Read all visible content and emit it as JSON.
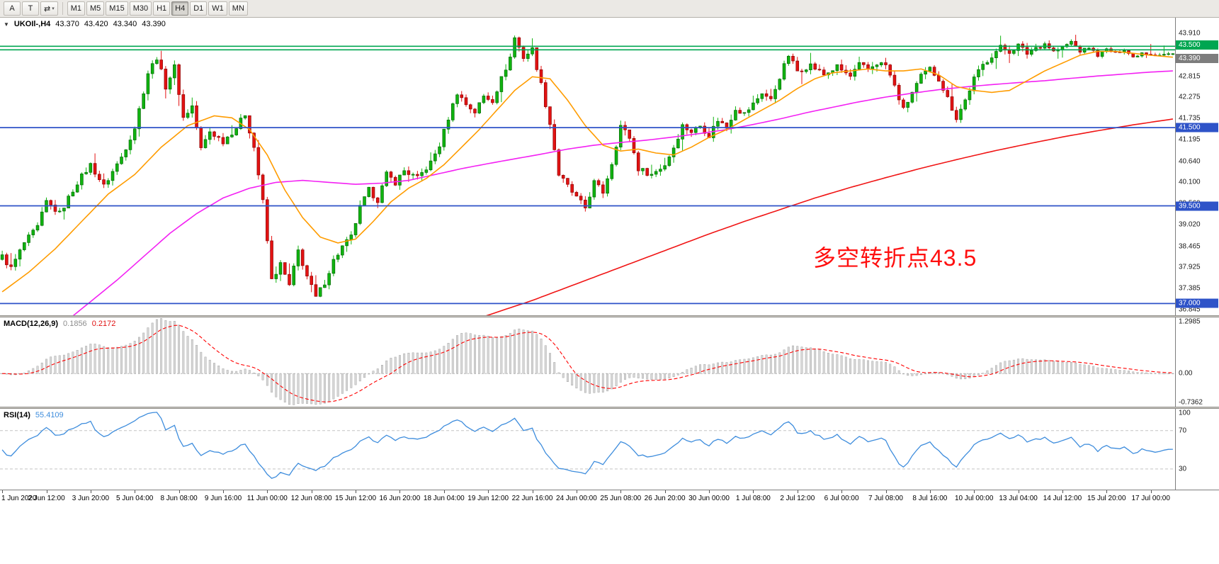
{
  "toolbar": {
    "tools": [
      {
        "name": "font-tool",
        "glyph": "A",
        "dropdown": false
      },
      {
        "name": "text-tool",
        "glyph": "T",
        "dropdown": false
      },
      {
        "name": "draw-tool",
        "glyph": "⇄",
        "dropdown": true
      }
    ],
    "timeframes": [
      {
        "label": "M1",
        "active": false
      },
      {
        "label": "M5",
        "active": false
      },
      {
        "label": "M15",
        "active": false
      },
      {
        "label": "M30",
        "active": false
      },
      {
        "label": "H1",
        "active": false
      },
      {
        "label": "H4",
        "active": true
      },
      {
        "label": "D1",
        "active": false
      },
      {
        "label": "W1",
        "active": false
      },
      {
        "label": "MN",
        "active": false
      }
    ]
  },
  "price_panel": {
    "collapse_icon": "▼",
    "title": {
      "symbol_period": "UKOIl-,H4",
      "open": "43.370",
      "high": "43.420",
      "low": "43.340",
      "close": "43.390"
    },
    "annotation": "多空转折点43.5",
    "axis_labels": [
      "43.910",
      "42.815",
      "42.275",
      "41.735",
      "41.195",
      "40.640",
      "40.100",
      "39.560",
      "39.020",
      "38.465",
      "37.925",
      "37.385",
      "36.845"
    ],
    "badges": [
      {
        "name": "resistance",
        "text": "43.500",
        "value": 43.5,
        "color": "#00a651"
      },
      {
        "name": "current-price",
        "text": "43.390",
        "value": 43.39,
        "color": "#7d7d7d"
      },
      {
        "name": "support-1",
        "text": "41.500",
        "value": 41.5,
        "color": "#2e53c8"
      },
      {
        "name": "support-2",
        "text": "39.500",
        "value": 39.5,
        "color": "#2e53c8"
      },
      {
        "name": "support-3",
        "text": "37.000",
        "value": 37.0,
        "color": "#2e53c8"
      }
    ],
    "scale": {
      "min": 36.7,
      "max": 44.31
    }
  },
  "macd_panel": {
    "label": "MACD(12,26,9)",
    "value_main": "0.1856",
    "value_signal": "0.2172",
    "axis_labels": {
      "top": "1.2985",
      "zero": "0.00",
      "bottom": "-0.7362"
    },
    "scale": {
      "min": -0.78,
      "max": 1.32
    }
  },
  "rsi_panel": {
    "label": "RSI(14)",
    "value": "55.4109",
    "axis_labels": {
      "top": "100",
      "upper": "70",
      "lower": "30"
    },
    "levels": [
      70,
      30
    ],
    "scale": {
      "min": 8.5,
      "max": 92.7
    }
  },
  "time_axis": {
    "step_candles": 10,
    "labels": [
      "1 Jun 2020",
      "2 Jun 12:00",
      "3 Jun 20:00",
      "5 Jun 04:00",
      "8 Jun 08:00",
      "9 Jun 16:00",
      "11 Jun 00:00",
      "12 Jun 08:00",
      "15 Jun 12:00",
      "16 Jun 20:00",
      "18 Jun 04:00",
      "19 Jun 12:00",
      "22 Jun 16:00",
      "24 Jun 00:00",
      "25 Jun 08:00",
      "26 Jun 20:00",
      "30 Jun 00:00",
      "1 Jul 08:00",
      "2 Jul 12:00",
      "6 Jul 00:00",
      "7 Jul 08:00",
      "8 Jul 16:00",
      "10 Jul 00:00",
      "13 Jul 04:00",
      "14 Jul 12:00",
      "15 Jul 20:00",
      "17 Jul 00:00"
    ]
  },
  "chart_data": {
    "type": "candlestick",
    "symbol": "UKOIl-",
    "period": "H4",
    "candle_count": 266,
    "ohlc_current": {
      "open": 43.37,
      "high": 43.42,
      "low": 43.34,
      "close": 43.39
    },
    "horizontal_lines": {
      "green": [
        43.58,
        43.49
      ],
      "blue": [
        41.5,
        39.5,
        37.0
      ]
    },
    "price_path_anchors": [
      [
        0,
        38.2
      ],
      [
        2,
        37.9
      ],
      [
        5,
        38.55
      ],
      [
        8,
        38.95
      ],
      [
        10,
        39.6
      ],
      [
        13,
        39.3
      ],
      [
        17,
        40.1
      ],
      [
        20,
        40.55
      ],
      [
        23,
        40.0
      ],
      [
        27,
        40.75
      ],
      [
        30,
        41.5
      ],
      [
        33,
        42.9
      ],
      [
        35,
        43.3
      ],
      [
        37,
        42.55
      ],
      [
        39,
        43.05
      ],
      [
        41,
        41.75
      ],
      [
        43,
        42.05
      ],
      [
        45,
        40.95
      ],
      [
        47,
        41.4
      ],
      [
        50,
        41.15
      ],
      [
        53,
        41.5
      ],
      [
        55,
        41.85
      ],
      [
        57,
        41.0
      ],
      [
        59,
        39.6
      ],
      [
        61,
        37.6
      ],
      [
        63,
        38.0
      ],
      [
        65,
        37.45
      ],
      [
        67,
        38.35
      ],
      [
        69,
        37.7
      ],
      [
        71,
        37.15
      ],
      [
        73,
        37.55
      ],
      [
        75,
        38.1
      ],
      [
        77,
        38.45
      ],
      [
        79,
        38.7
      ],
      [
        81,
        39.45
      ],
      [
        83,
        39.9
      ],
      [
        85,
        39.65
      ],
      [
        87,
        40.3
      ],
      [
        89,
        40.1
      ],
      [
        91,
        40.4
      ],
      [
        94,
        40.2
      ],
      [
        97,
        40.6
      ],
      [
        99,
        41.05
      ],
      [
        101,
        41.75
      ],
      [
        103,
        42.4
      ],
      [
        105,
        42.1
      ],
      [
        107,
        41.9
      ],
      [
        109,
        42.3
      ],
      [
        111,
        42.2
      ],
      [
        113,
        42.75
      ],
      [
        115,
        43.3
      ],
      [
        116,
        43.8
      ],
      [
        118,
        43.3
      ],
      [
        120,
        43.5
      ],
      [
        122,
        42.6
      ],
      [
        124,
        41.6
      ],
      [
        126,
        40.3
      ],
      [
        128,
        40.0
      ],
      [
        130,
        39.7
      ],
      [
        132,
        39.45
      ],
      [
        134,
        40.1
      ],
      [
        136,
        39.85
      ],
      [
        138,
        40.6
      ],
      [
        140,
        41.55
      ],
      [
        142,
        41.25
      ],
      [
        144,
        40.45
      ],
      [
        147,
        40.3
      ],
      [
        150,
        40.55
      ],
      [
        152,
        41.0
      ],
      [
        154,
        41.55
      ],
      [
        156,
        41.4
      ],
      [
        158,
        41.55
      ],
      [
        160,
        41.3
      ],
      [
        162,
        41.7
      ],
      [
        164,
        41.5
      ],
      [
        166,
        42.0
      ],
      [
        168,
        41.85
      ],
      [
        170,
        42.1
      ],
      [
        172,
        42.4
      ],
      [
        174,
        42.2
      ],
      [
        176,
        42.8
      ],
      [
        178,
        43.35
      ],
      [
        180,
        42.95
      ],
      [
        183,
        43.1
      ],
      [
        186,
        42.85
      ],
      [
        189,
        43.05
      ],
      [
        192,
        42.8
      ],
      [
        194,
        43.1
      ],
      [
        196,
        43.0
      ],
      [
        198,
        43.15
      ],
      [
        200,
        43.1
      ],
      [
        202,
        42.55
      ],
      [
        204,
        41.95
      ],
      [
        206,
        42.4
      ],
      [
        208,
        42.8
      ],
      [
        210,
        43.0
      ],
      [
        212,
        42.75
      ],
      [
        214,
        42.25
      ],
      [
        216,
        41.75
      ],
      [
        218,
        42.2
      ],
      [
        220,
        42.75
      ],
      [
        222,
        43.1
      ],
      [
        224,
        43.35
      ],
      [
        226,
        43.55
      ],
      [
        228,
        43.45
      ],
      [
        230,
        43.6
      ],
      [
        232,
        43.4
      ],
      [
        234,
        43.55
      ],
      [
        236,
        43.65
      ],
      [
        238,
        43.45
      ],
      [
        240,
        43.55
      ],
      [
        242,
        43.7
      ],
      [
        244,
        43.45
      ],
      [
        246,
        43.55
      ],
      [
        248,
        43.35
      ],
      [
        250,
        43.5
      ],
      [
        252,
        43.4
      ],
      [
        254,
        43.5
      ],
      [
        256,
        43.3
      ],
      [
        258,
        43.42
      ],
      [
        261,
        43.36
      ],
      [
        265,
        43.39
      ]
    ],
    "ma_fast_anchors": [
      [
        0,
        37.3
      ],
      [
        6,
        37.8
      ],
      [
        12,
        38.4
      ],
      [
        18,
        39.1
      ],
      [
        24,
        39.8
      ],
      [
        30,
        40.3
      ],
      [
        36,
        41.0
      ],
      [
        42,
        41.55
      ],
      [
        48,
        41.8
      ],
      [
        52,
        41.75
      ],
      [
        56,
        41.45
      ],
      [
        60,
        40.8
      ],
      [
        64,
        39.9
      ],
      [
        68,
        39.2
      ],
      [
        72,
        38.7
      ],
      [
        76,
        38.55
      ],
      [
        80,
        38.65
      ],
      [
        84,
        39.1
      ],
      [
        88,
        39.6
      ],
      [
        92,
        39.95
      ],
      [
        96,
        40.2
      ],
      [
        100,
        40.55
      ],
      [
        104,
        41.0
      ],
      [
        108,
        41.45
      ],
      [
        112,
        41.95
      ],
      [
        116,
        42.45
      ],
      [
        120,
        42.8
      ],
      [
        124,
        42.75
      ],
      [
        128,
        42.2
      ],
      [
        132,
        41.55
      ],
      [
        136,
        41.05
      ],
      [
        140,
        40.9
      ],
      [
        144,
        40.95
      ],
      [
        148,
        40.85
      ],
      [
        152,
        40.8
      ],
      [
        156,
        41.0
      ],
      [
        160,
        41.25
      ],
      [
        164,
        41.45
      ],
      [
        168,
        41.7
      ],
      [
        172,
        41.95
      ],
      [
        176,
        42.2
      ],
      [
        180,
        42.5
      ],
      [
        184,
        42.75
      ],
      [
        188,
        42.9
      ],
      [
        192,
        42.95
      ],
      [
        196,
        43.0
      ],
      [
        200,
        42.95
      ],
      [
        204,
        42.95
      ],
      [
        208,
        43.0
      ],
      [
        212,
        42.85
      ],
      [
        216,
        42.55
      ],
      [
        220,
        42.45
      ],
      [
        224,
        42.4
      ],
      [
        228,
        42.45
      ],
      [
        232,
        42.7
      ],
      [
        236,
        42.95
      ],
      [
        240,
        43.15
      ],
      [
        244,
        43.35
      ],
      [
        248,
        43.45
      ],
      [
        252,
        43.45
      ],
      [
        256,
        43.4
      ],
      [
        260,
        43.35
      ],
      [
        265,
        43.3
      ]
    ],
    "ma_mid_anchors": [
      [
        14,
        36.5
      ],
      [
        20,
        37.05
      ],
      [
        26,
        37.6
      ],
      [
        32,
        38.2
      ],
      [
        38,
        38.8
      ],
      [
        44,
        39.3
      ],
      [
        50,
        39.7
      ],
      [
        56,
        39.95
      ],
      [
        62,
        40.1
      ],
      [
        68,
        40.15
      ],
      [
        74,
        40.1
      ],
      [
        80,
        40.05
      ],
      [
        86,
        40.08
      ],
      [
        92,
        40.15
      ],
      [
        98,
        40.3
      ],
      [
        104,
        40.45
      ],
      [
        110,
        40.58
      ],
      [
        116,
        40.7
      ],
      [
        122,
        40.82
      ],
      [
        128,
        40.95
      ],
      [
        134,
        41.05
      ],
      [
        140,
        41.12
      ],
      [
        146,
        41.18
      ],
      [
        152,
        41.26
      ],
      [
        158,
        41.35
      ],
      [
        164,
        41.45
      ],
      [
        170,
        41.58
      ],
      [
        176,
        41.72
      ],
      [
        182,
        41.88
      ],
      [
        188,
        42.02
      ],
      [
        194,
        42.16
      ],
      [
        200,
        42.28
      ],
      [
        206,
        42.38
      ],
      [
        212,
        42.47
      ],
      [
        218,
        42.54
      ],
      [
        224,
        42.6
      ],
      [
        230,
        42.65
      ],
      [
        236,
        42.7
      ],
      [
        242,
        42.76
      ],
      [
        248,
        42.82
      ],
      [
        254,
        42.87
      ],
      [
        260,
        42.92
      ],
      [
        265,
        42.95
      ]
    ],
    "ma_slow_anchors": [
      [
        106,
        36.55
      ],
      [
        112,
        36.78
      ],
      [
        120,
        37.08
      ],
      [
        128,
        37.42
      ],
      [
        136,
        37.76
      ],
      [
        144,
        38.1
      ],
      [
        152,
        38.44
      ],
      [
        160,
        38.78
      ],
      [
        168,
        39.1
      ],
      [
        176,
        39.4
      ],
      [
        184,
        39.7
      ],
      [
        192,
        39.97
      ],
      [
        200,
        40.22
      ],
      [
        208,
        40.46
      ],
      [
        216,
        40.68
      ],
      [
        224,
        40.89
      ],
      [
        232,
        41.08
      ],
      [
        240,
        41.26
      ],
      [
        248,
        41.42
      ],
      [
        256,
        41.57
      ],
      [
        265,
        41.72
      ]
    ],
    "macd": {
      "fast": 12,
      "slow": 26,
      "signal": 9,
      "display_max": 1.2985,
      "display_min": -0.7362
    },
    "rsi": {
      "period": 14,
      "current": 55.4109,
      "levels": [
        70,
        30
      ]
    },
    "colors": {
      "bull": "#10b410",
      "bear": "#e31212",
      "bull_border": "#056805",
      "bear_border": "#8d0707",
      "ma_fast": "#ff9c00",
      "ma_mid": "#f321f3",
      "ma_slow": "#f01414",
      "macd_hist_fill": "#d9d9d9",
      "macd_hist_border": "#a3a3a3",
      "macd_signal": "#ff0000",
      "rsi_line": "#3e8ddd",
      "hline_green": "#00a651",
      "hline_blue": "#2e53c8",
      "annotation": "#ff0f0f"
    }
  }
}
